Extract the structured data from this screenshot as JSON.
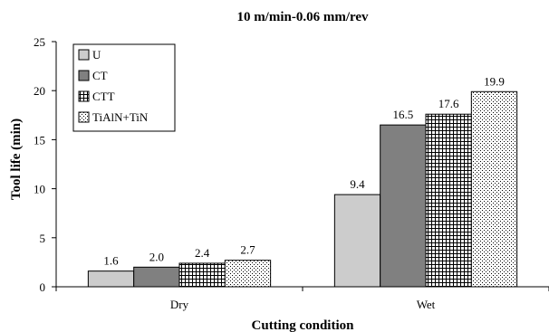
{
  "chart_data": {
    "type": "bar",
    "title": "10 m/min-0.06 mm/rev",
    "xlabel": "Cutting condition",
    "ylabel": "Tool life (min)",
    "ylim": [
      0,
      25
    ],
    "yticks": [
      0,
      5,
      10,
      15,
      20,
      25
    ],
    "categories": [
      "Dry",
      "Wet"
    ],
    "series": [
      {
        "name": "U",
        "values": [
          1.6,
          9.4
        ],
        "value_labels": [
          "1.6",
          "9.4"
        ],
        "pattern": "solid-light",
        "color": "#cccccc"
      },
      {
        "name": "CT",
        "values": [
          2.0,
          16.5
        ],
        "value_labels": [
          "2.0",
          "16.5"
        ],
        "pattern": "solid-dark",
        "color": "#808080"
      },
      {
        "name": "CTT",
        "values": [
          2.4,
          17.6
        ],
        "value_labels": [
          "2.4",
          "17.6"
        ],
        "pattern": "grid",
        "color": "#000000"
      },
      {
        "name": "TiAlN+TiN",
        "values": [
          2.7,
          19.9
        ],
        "value_labels": [
          "2.7",
          "19.9"
        ],
        "pattern": "dots",
        "color": "#000000"
      }
    ],
    "legend_position": "top-left",
    "grid": false
  }
}
